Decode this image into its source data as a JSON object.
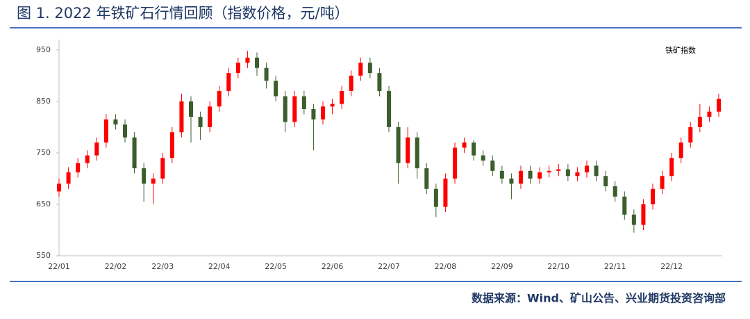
{
  "chart_data": {
    "type": "candlestick",
    "title": "图 1. 2022 年铁矿石行情回顾（指数价格，元/吨）",
    "source": "数据来源：Wind、矿山公告、兴业期货投资咨询部",
    "categories": [
      "22/01",
      null,
      null,
      null,
      null,
      null,
      "22/02",
      null,
      null,
      null,
      null,
      "22/03",
      null,
      null,
      null,
      null,
      null,
      "22/04",
      null,
      null,
      null,
      null,
      null,
      "22/05",
      null,
      null,
      null,
      null,
      null,
      "22/06",
      null,
      null,
      null,
      null,
      null,
      "22/07",
      null,
      null,
      null,
      null,
      null,
      "22/08",
      null,
      null,
      null,
      null,
      null,
      "22/09",
      null,
      null,
      null,
      null,
      null,
      "22/10",
      null,
      null,
      null,
      null,
      null,
      "22/11",
      null,
      null,
      null,
      null,
      null,
      "22/12",
      null,
      null,
      null,
      null,
      null
    ],
    "series": [
      {
        "name": "铁矿指数",
        "up_color": "#ff0000",
        "down_color": "#3b5e2b",
        "open": [
          675,
          690,
          712,
          730,
          745,
          770,
          815,
          805,
          780,
          720,
          690,
          700,
          740,
          790,
          850,
          820,
          800,
          840,
          870,
          905,
          925,
          935,
          915,
          890,
          860,
          810,
          860,
          835,
          815,
          840,
          845,
          870,
          900,
          925,
          905,
          870,
          800,
          730,
          780,
          720,
          680,
          645,
          700,
          760,
          770,
          745,
          735,
          715,
          700,
          690,
          715,
          700,
          712,
          715,
          718,
          705,
          712,
          725,
          705,
          685,
          665,
          630,
          610,
          650,
          680,
          705,
          740,
          770,
          800,
          820,
          830
        ],
        "high": [
          700,
          722,
          740,
          755,
          780,
          825,
          825,
          815,
          790,
          730,
          710,
          750,
          800,
          865,
          860,
          830,
          850,
          880,
          915,
          935,
          948,
          945,
          925,
          900,
          870,
          870,
          870,
          845,
          850,
          855,
          880,
          910,
          935,
          935,
          915,
          880,
          810,
          800,
          790,
          730,
          690,
          710,
          770,
          780,
          775,
          755,
          745,
          725,
          710,
          725,
          725,
          722,
          725,
          728,
          728,
          722,
          735,
          735,
          715,
          695,
          675,
          640,
          660,
          690,
          715,
          750,
          780,
          810,
          845,
          840,
          865
        ],
        "low": [
          665,
          680,
          702,
          720,
          735,
          760,
          795,
          770,
          710,
          655,
          650,
          690,
          730,
          780,
          770,
          775,
          790,
          830,
          860,
          895,
          915,
          900,
          875,
          850,
          790,
          800,
          825,
          755,
          805,
          825,
          835,
          860,
          890,
          895,
          860,
          790,
          690,
          720,
          700,
          670,
          625,
          635,
          690,
          750,
          735,
          725,
          705,
          690,
          660,
          680,
          690,
          690,
          702,
          705,
          695,
          695,
          702,
          695,
          675,
          655,
          620,
          595,
          600,
          640,
          670,
          695,
          730,
          760,
          790,
          810,
          820
        ],
        "close": [
          690,
          712,
          730,
          745,
          770,
          815,
          805,
          780,
          720,
          690,
          700,
          740,
          790,
          850,
          820,
          800,
          840,
          870,
          905,
          925,
          935,
          915,
          890,
          860,
          810,
          860,
          835,
          815,
          840,
          845,
          870,
          900,
          925,
          905,
          870,
          800,
          730,
          780,
          720,
          680,
          645,
          700,
          760,
          770,
          745,
          735,
          715,
          700,
          690,
          715,
          700,
          712,
          715,
          718,
          705,
          712,
          725,
          705,
          685,
          665,
          630,
          610,
          650,
          680,
          705,
          740,
          770,
          800,
          820,
          830,
          855
        ]
      }
    ],
    "ylim": [
      550,
      970
    ],
    "yticks": [
      550,
      650,
      750,
      850,
      950
    ]
  }
}
